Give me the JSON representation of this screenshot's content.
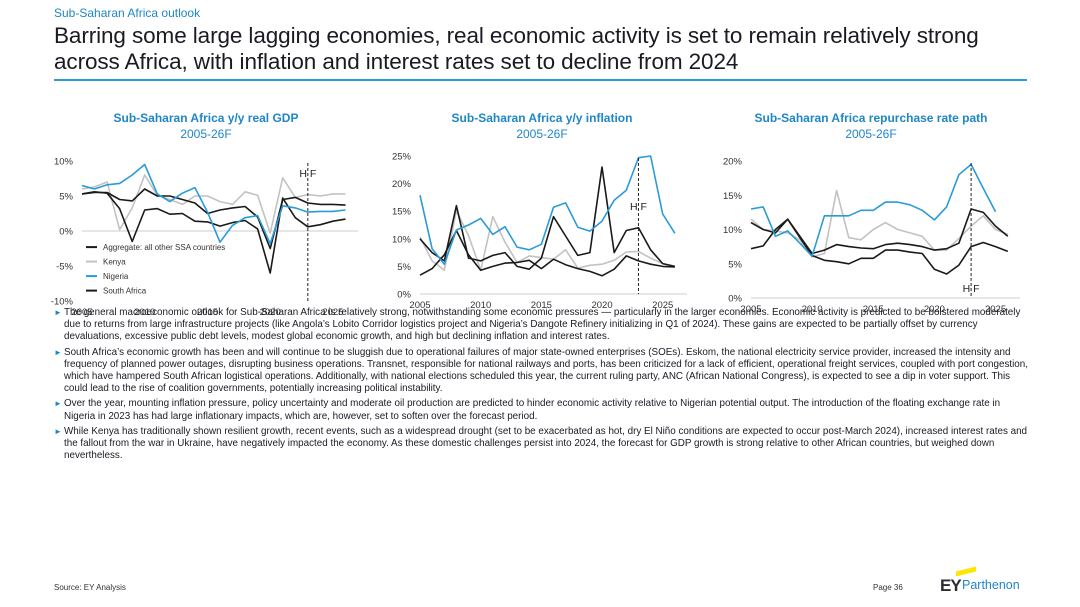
{
  "header": {
    "kicker": "Sub-Saharan Africa outlook",
    "title": "Barring some large lagging economies, real economic activity is set to remain relatively strong across Africa, with inflation and interest rates set to decline from 2024"
  },
  "colors": {
    "accent": "#1f86c7",
    "black_series": "#1a1a1a",
    "grey_series": "#c2c2c2",
    "blue_series": "#2a9bd8"
  },
  "chart_data": [
    {
      "type": "line",
      "title": "Sub-Saharan Africa y/y real GDP",
      "subtitle": "2005-26F",
      "forecast_marker": "H F",
      "forecast_start": 2023,
      "x": [
        2005,
        2006,
        2007,
        2008,
        2009,
        2010,
        2011,
        2012,
        2013,
        2014,
        2015,
        2016,
        2017,
        2018,
        2019,
        2020,
        2021,
        2022,
        2023,
        2024,
        2025,
        2026
      ],
      "xlim": [
        2005,
        2027
      ],
      "ylim": [
        -10,
        10
      ],
      "yticks": [
        -10,
        -5,
        0,
        5,
        10
      ],
      "ytick_labels": [
        "-10%",
        "-5%",
        "0%",
        "5%",
        "10%"
      ],
      "xticks": [
        2005,
        2010,
        2015,
        2020,
        2025
      ],
      "xtick_labels": [
        "2005",
        "2010",
        "2015",
        "2020",
        "2025"
      ],
      "legend_position": "bottom-left",
      "series": [
        {
          "name": "Aggregate: all other SSA countries",
          "color": "#1a1a1a",
          "values": [
            5.3,
            5.5,
            5.5,
            4.5,
            4.3,
            6.0,
            5.0,
            5.0,
            4.5,
            4.0,
            2.5,
            3.0,
            3.3,
            3.5,
            2.0,
            -2.5,
            4.5,
            4.8,
            4.0,
            3.8,
            3.8,
            3.7
          ]
        },
        {
          "name": "Kenya",
          "color": "#c2c2c2",
          "values": [
            6.0,
            6.3,
            7.0,
            0.2,
            3.3,
            8.0,
            5.1,
            4.5,
            3.8,
            5.0,
            5.0,
            4.2,
            3.8,
            5.6,
            5.1,
            -0.3,
            7.6,
            4.8,
            5.2,
            5.0,
            5.3,
            5.3
          ]
        },
        {
          "name": "Nigeria",
          "color": "#2a9bd8",
          "values": [
            6.5,
            6.0,
            6.6,
            6.8,
            8.0,
            9.5,
            5.3,
            4.2,
            5.4,
            6.2,
            2.7,
            -1.6,
            0.8,
            1.9,
            2.2,
            -1.8,
            3.6,
            3.3,
            2.7,
            2.8,
            2.8,
            3.0
          ]
        },
        {
          "name": "South Africa",
          "color": "#1a1a1a",
          "values": [
            5.3,
            5.6,
            5.4,
            3.2,
            -1.5,
            3.0,
            3.2,
            2.4,
            2.5,
            1.4,
            1.3,
            0.7,
            1.2,
            1.5,
            0.3,
            -6.0,
            4.7,
            1.9,
            0.6,
            0.9,
            1.4,
            1.7
          ]
        }
      ]
    },
    {
      "type": "line",
      "title": "Sub-Saharan Africa y/y inflation",
      "subtitle": "2005-26F",
      "forecast_marker": "H F",
      "forecast_start": 2023,
      "x": [
        2005,
        2006,
        2007,
        2008,
        2009,
        2010,
        2011,
        2012,
        2013,
        2014,
        2015,
        2016,
        2017,
        2018,
        2019,
        2020,
        2021,
        2022,
        2023,
        2024,
        2025,
        2026
      ],
      "xlim": [
        2005,
        2027
      ],
      "ylim": [
        0,
        25
      ],
      "yticks": [
        0,
        5,
        10,
        15,
        20,
        25
      ],
      "ytick_labels": [
        "0%",
        "5%",
        "10%",
        "15%",
        "20%",
        "25%"
      ],
      "xticks": [
        2005,
        2010,
        2015,
        2020,
        2025
      ],
      "xtick_labels": [
        "2005",
        "2010",
        "2015",
        "2020",
        "2025"
      ],
      "series": [
        {
          "name": "Aggregate: all other SSA countries",
          "color": "#1a1a1a",
          "values": [
            10.0,
            7.5,
            6.0,
            16.0,
            6.5,
            6.0,
            7.0,
            7.5,
            5.0,
            4.5,
            6.5,
            14.0,
            10.5,
            7.0,
            7.5,
            23.0,
            7.5,
            11.5,
            12.0,
            8.0,
            5.5,
            5.0
          ]
        },
        {
          "name": "Kenya",
          "color": "#c2c2c2",
          "values": [
            10.3,
            6.0,
            4.3,
            15.1,
            10.6,
            4.3,
            14.0,
            9.4,
            5.7,
            6.9,
            6.6,
            6.3,
            8.0,
            4.7,
            5.2,
            5.4,
            6.1,
            7.6,
            7.7,
            6.5,
            5.5,
            5.0
          ]
        },
        {
          "name": "Nigeria",
          "color": "#2a9bd8",
          "values": [
            17.9,
            8.2,
            5.4,
            11.6,
            12.5,
            13.7,
            10.8,
            12.2,
            8.5,
            8.0,
            9.0,
            15.7,
            16.5,
            12.1,
            11.4,
            13.2,
            17.0,
            18.8,
            24.7,
            25.0,
            14.5,
            11.0
          ]
        },
        {
          "name": "South Africa",
          "color": "#1a1a1a",
          "values": [
            3.4,
            4.6,
            7.1,
            11.5,
            7.1,
            4.3,
            5.0,
            5.6,
            5.7,
            6.1,
            4.6,
            6.3,
            5.3,
            4.6,
            4.1,
            3.3,
            4.5,
            6.9,
            6.0,
            5.4,
            5.0,
            4.9
          ]
        }
      ]
    },
    {
      "type": "line",
      "title": "Sub-Saharan Africa repurchase rate path",
      "subtitle": "2005-26F",
      "forecast_marker": "H F",
      "forecast_start": 2023,
      "x": [
        2005,
        2006,
        2007,
        2008,
        2009,
        2010,
        2011,
        2012,
        2013,
        2014,
        2015,
        2016,
        2017,
        2018,
        2019,
        2020,
        2021,
        2022,
        2023,
        2024,
        2025,
        2026
      ],
      "xlim": [
        2005,
        2027
      ],
      "ylim": [
        0,
        20
      ],
      "yticks": [
        0,
        5,
        10,
        15,
        20
      ],
      "ytick_labels": [
        "0%",
        "5%",
        "10%",
        "15%",
        "20%"
      ],
      "xticks": [
        2005,
        2010,
        2015,
        2020,
        2025
      ],
      "xtick_labels": [
        "2005",
        "2010",
        "2015",
        "2020",
        "2025"
      ],
      "series": [
        {
          "name": "Aggregate: all other SSA countries",
          "color": "#1a1a1a",
          "values": [
            11.0,
            10.0,
            9.5,
            11.5,
            9.0,
            6.5,
            7.0,
            7.8,
            7.5,
            7.3,
            7.2,
            7.8,
            8.0,
            7.8,
            7.5,
            7.0,
            7.2,
            8.0,
            13.0,
            12.5,
            10.5,
            9.0
          ]
        },
        {
          "name": "Kenya",
          "color": "#c2c2c2",
          "values": [
            11.5,
            10.0,
            9.8,
            9.5,
            8.5,
            6.0,
            6.5,
            15.7,
            8.8,
            8.5,
            10.0,
            11.0,
            10.0,
            9.5,
            9.0,
            7.0,
            7.0,
            8.7,
            10.5,
            12.0,
            10.0,
            9.3
          ]
        },
        {
          "name": "Nigeria",
          "color": "#2a9bd8",
          "values": [
            13.0,
            13.3,
            9.0,
            9.8,
            8.0,
            6.1,
            12.0,
            12.0,
            12.0,
            12.8,
            12.8,
            14.0,
            14.0,
            13.6,
            12.8,
            11.4,
            13.3,
            18.0,
            19.5,
            16.0,
            12.6,
            null
          ]
        },
        {
          "name": "South Africa",
          "color": "#1a1a1a",
          "values": [
            7.2,
            7.6,
            10.0,
            11.5,
            8.8,
            6.2,
            5.5,
            5.3,
            5.0,
            5.8,
            5.8,
            7.0,
            7.0,
            6.7,
            6.5,
            4.2,
            3.5,
            4.8,
            7.5,
            8.1,
            7.5,
            6.8
          ]
        }
      ]
    }
  ],
  "bullets": [
    "The general macroeconomic outlook for Sub-Saharan Africa is relatively strong, notwithstanding some economic pressures — particularly in the larger economies. Economic activity is predicted to be bolstered moderately due to returns from large infrastructure projects (like Angola’s Lobito Corridor logistics project and Nigeria’s Dangote Refinery initializing in Q1 of 2024). These gains are expected to be partially offset by currency devaluations, excessive public debt levels, modest global economic growth, and high but declining inflation and interest rates.",
    "South Africa’s economic growth has been and will continue to be sluggish due to operational failures of major state-owned enterprises (SOEs). Eskom, the national electricity service provider, increased the intensity and frequency of planned power outages, disrupting business operations. Transnet, responsible for national railways and ports, has been criticized for a lack of efficient, operational freight services, coupled with port congestion, which have hampered South African logistical operations. Additionally, with national elections scheduled this year, the current ruling party, ANC (African National Congress), is expected to see a dip in voter support. This could lead to the rise of coalition governments, potentially increasing political instability.",
    "Over the year, mounting inflation pressure, policy uncertainty and moderate oil production are predicted to hinder economic activity relative to Nigerian potential output. The introduction of the floating exchange rate in Nigeria in 2023 has had large inflationary impacts, which are, however, set to soften over the forecast period.",
    "While Kenya has traditionally shown resilient growth, recent events, such as a widespread drought (set to be exacerbated as hot, dry El Niño conditions are expected to occur post-March 2024), increased interest rates and the fallout from the war in Ukraine, have negatively impacted the economy. As these domestic challenges persist into 2024, the forecast for GDP growth is strong relative to other African countries, but weighed down nevertheless."
  ],
  "footer": {
    "source": "Source: EY Analysis",
    "page": "Page 36",
    "logo_ey": "EY",
    "logo_parthenon": "Parthenon"
  }
}
